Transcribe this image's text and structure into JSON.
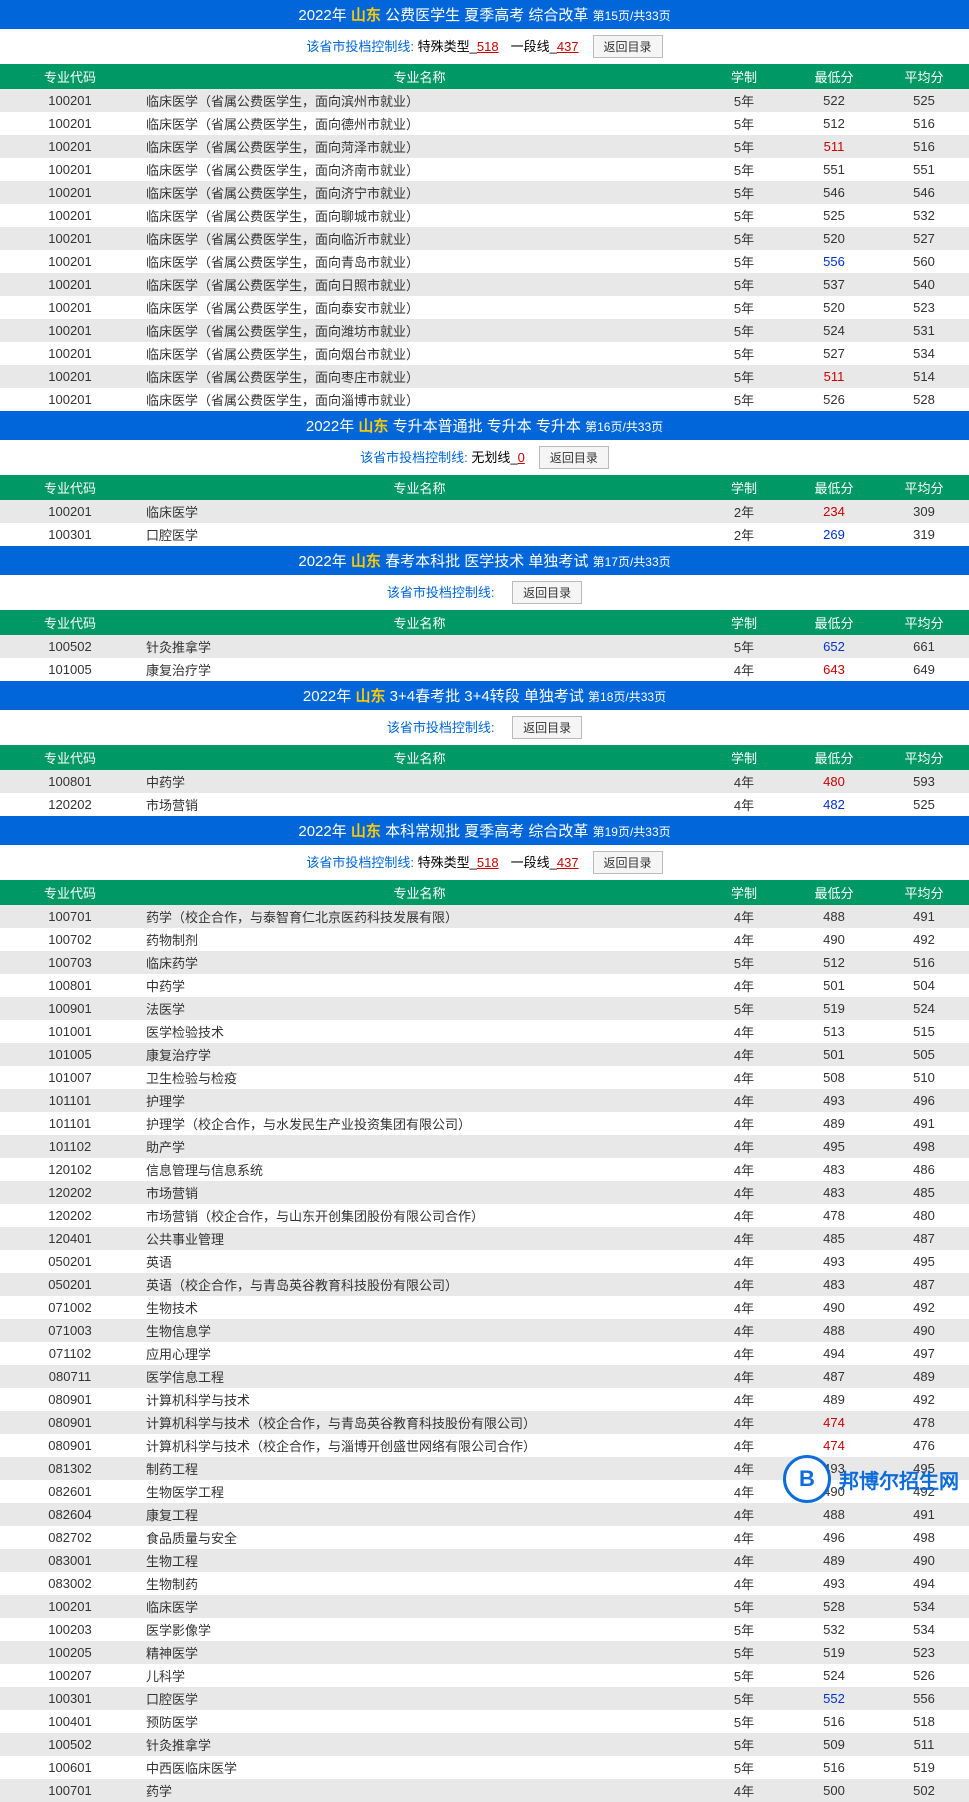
{
  "colors": {
    "title_bg": "#0066d9",
    "title_fg": "#ffffff",
    "province_fg": "#ffcc00",
    "header_bg": "#009966",
    "header_fg": "#ffffff",
    "row_even_bg": "#e8e8e8",
    "row_odd_bg": "#ffffff",
    "text": "#333333",
    "highlight_red": "#cc0000",
    "highlight_blue": "#0033cc",
    "link_blue": "#0066d9"
  },
  "common": {
    "year_prefix": "2022年",
    "province": "山东",
    "cutoff_label": "该省市投档控制线:",
    "special_label": "特殊类型",
    "tier_label": "一段线",
    "noline_label": "无划线",
    "return_btn": "返回目录",
    "col_code": "专业代码",
    "col_name": "专业名称",
    "col_dur": "学制",
    "col_min": "最低分",
    "col_avg": "平均分"
  },
  "watermark": {
    "initial": "B",
    "text": "邦博尔招生网"
  },
  "sections": [
    {
      "title_rest": "公费医学生 夏季高考 综合改革",
      "page_info": "第15页/共33页",
      "cutoff": {
        "type": "two",
        "special": "518",
        "tier": "437"
      },
      "rows": [
        {
          "code": "100201",
          "name": "临床医学（省属公费医学生，面向滨州市就业）",
          "dur": "5年",
          "min": "522",
          "avg": "525"
        },
        {
          "code": "100201",
          "name": "临床医学（省属公费医学生，面向德州市就业）",
          "dur": "5年",
          "min": "512",
          "avg": "516"
        },
        {
          "code": "100201",
          "name": "临床医学（省属公费医学生，面向菏泽市就业）",
          "dur": "5年",
          "min": "511",
          "min_c": "red",
          "avg": "516"
        },
        {
          "code": "100201",
          "name": "临床医学（省属公费医学生，面向济南市就业）",
          "dur": "5年",
          "min": "551",
          "avg": "551"
        },
        {
          "code": "100201",
          "name": "临床医学（省属公费医学生，面向济宁市就业）",
          "dur": "5年",
          "min": "546",
          "avg": "546"
        },
        {
          "code": "100201",
          "name": "临床医学（省属公费医学生，面向聊城市就业）",
          "dur": "5年",
          "min": "525",
          "avg": "532"
        },
        {
          "code": "100201",
          "name": "临床医学（省属公费医学生，面向临沂市就业）",
          "dur": "5年",
          "min": "520",
          "avg": "527"
        },
        {
          "code": "100201",
          "name": "临床医学（省属公费医学生，面向青岛市就业）",
          "dur": "5年",
          "min": "556",
          "min_c": "blue",
          "avg": "560"
        },
        {
          "code": "100201",
          "name": "临床医学（省属公费医学生，面向日照市就业）",
          "dur": "5年",
          "min": "537",
          "avg": "540"
        },
        {
          "code": "100201",
          "name": "临床医学（省属公费医学生，面向泰安市就业）",
          "dur": "5年",
          "min": "520",
          "avg": "523"
        },
        {
          "code": "100201",
          "name": "临床医学（省属公费医学生，面向潍坊市就业）",
          "dur": "5年",
          "min": "524",
          "avg": "531"
        },
        {
          "code": "100201",
          "name": "临床医学（省属公费医学生，面向烟台市就业）",
          "dur": "5年",
          "min": "527",
          "avg": "534"
        },
        {
          "code": "100201",
          "name": "临床医学（省属公费医学生，面向枣庄市就业）",
          "dur": "5年",
          "min": "511",
          "min_c": "red",
          "avg": "514"
        },
        {
          "code": "100201",
          "name": "临床医学（省属公费医学生，面向淄博市就业）",
          "dur": "5年",
          "min": "526",
          "avg": "528"
        }
      ]
    },
    {
      "title_rest": "专升本普通批 专升本 专升本",
      "page_info": "第16页/共33页",
      "cutoff": {
        "type": "none",
        "val": "0"
      },
      "rows": [
        {
          "code": "100201",
          "name": "临床医学",
          "dur": "2年",
          "min": "234",
          "min_c": "red",
          "avg": "309"
        },
        {
          "code": "100301",
          "name": "口腔医学",
          "dur": "2年",
          "min": "269",
          "min_c": "blue",
          "avg": "319"
        }
      ]
    },
    {
      "title_rest": "春考本科批 医学技术 单独考试",
      "page_info": "第17页/共33页",
      "cutoff": {
        "type": "empty"
      },
      "rows": [
        {
          "code": "100502",
          "name": "针灸推拿学",
          "dur": "5年",
          "min": "652",
          "min_c": "blue",
          "avg": "661"
        },
        {
          "code": "101005",
          "name": "康复治疗学",
          "dur": "4年",
          "min": "643",
          "min_c": "red",
          "avg": "649"
        }
      ]
    },
    {
      "title_rest": "3+4春考批 3+4转段 单独考试",
      "page_info": "第18页/共33页",
      "cutoff": {
        "type": "empty"
      },
      "rows": [
        {
          "code": "100801",
          "name": "中药学",
          "dur": "4年",
          "min": "480",
          "min_c": "red",
          "avg": "593"
        },
        {
          "code": "120202",
          "name": "市场营销",
          "dur": "4年",
          "min": "482",
          "min_c": "blue",
          "avg": "525"
        }
      ]
    },
    {
      "title_rest": "本科常规批 夏季高考 综合改革",
      "page_info": "第19页/共33页",
      "cutoff": {
        "type": "two",
        "special": "518",
        "tier": "437"
      },
      "rows": [
        {
          "code": "100701",
          "name": "药学（校企合作，与泰智育仁北京医药科技发展有限）",
          "dur": "4年",
          "min": "488",
          "avg": "491"
        },
        {
          "code": "100702",
          "name": "药物制剂",
          "dur": "4年",
          "min": "490",
          "avg": "492"
        },
        {
          "code": "100703",
          "name": "临床药学",
          "dur": "5年",
          "min": "512",
          "avg": "516"
        },
        {
          "code": "100801",
          "name": "中药学",
          "dur": "4年",
          "min": "501",
          "avg": "504"
        },
        {
          "code": "100901",
          "name": "法医学",
          "dur": "5年",
          "min": "519",
          "avg": "524"
        },
        {
          "code": "101001",
          "name": "医学检验技术",
          "dur": "4年",
          "min": "513",
          "avg": "515"
        },
        {
          "code": "101005",
          "name": "康复治疗学",
          "dur": "4年",
          "min": "501",
          "avg": "505"
        },
        {
          "code": "101007",
          "name": "卫生检验与检疫",
          "dur": "4年",
          "min": "508",
          "avg": "510"
        },
        {
          "code": "101101",
          "name": "护理学",
          "dur": "4年",
          "min": "493",
          "avg": "496"
        },
        {
          "code": "101101",
          "name": "护理学（校企合作，与水发民生产业投资集团有限公司）",
          "dur": "4年",
          "min": "489",
          "avg": "491"
        },
        {
          "code": "101102",
          "name": "助产学",
          "dur": "4年",
          "min": "495",
          "avg": "498"
        },
        {
          "code": "120102",
          "name": "信息管理与信息系统",
          "dur": "4年",
          "min": "483",
          "avg": "486"
        },
        {
          "code": "120202",
          "name": "市场营销",
          "dur": "4年",
          "min": "483",
          "avg": "485"
        },
        {
          "code": "120202",
          "name": "市场营销（校企合作，与山东开创集团股份有限公司合作）",
          "dur": "4年",
          "min": "478",
          "avg": "480"
        },
        {
          "code": "120401",
          "name": "公共事业管理",
          "dur": "4年",
          "min": "485",
          "avg": "487"
        },
        {
          "code": "050201",
          "name": "英语",
          "dur": "4年",
          "min": "493",
          "avg": "495"
        },
        {
          "code": "050201",
          "name": "英语（校企合作，与青岛英谷教育科技股份有限公司）",
          "dur": "4年",
          "min": "483",
          "avg": "487"
        },
        {
          "code": "071002",
          "name": "生物技术",
          "dur": "4年",
          "min": "490",
          "avg": "492"
        },
        {
          "code": "071003",
          "name": "生物信息学",
          "dur": "4年",
          "min": "488",
          "avg": "490"
        },
        {
          "code": "071102",
          "name": "应用心理学",
          "dur": "4年",
          "min": "494",
          "avg": "497"
        },
        {
          "code": "080711",
          "name": "医学信息工程",
          "dur": "4年",
          "min": "487",
          "avg": "489"
        },
        {
          "code": "080901",
          "name": "计算机科学与技术",
          "dur": "4年",
          "min": "489",
          "avg": "492"
        },
        {
          "code": "080901",
          "name": "计算机科学与技术（校企合作，与青岛英谷教育科技股份有限公司）",
          "dur": "4年",
          "min": "474",
          "min_c": "red",
          "avg": "478"
        },
        {
          "code": "080901",
          "name": "计算机科学与技术（校企合作，与淄博开创盛世网络有限公司合作）",
          "dur": "4年",
          "min": "474",
          "min_c": "red",
          "avg": "476"
        },
        {
          "code": "081302",
          "name": "制药工程",
          "dur": "4年",
          "min": "493",
          "avg": "495"
        },
        {
          "code": "082601",
          "name": "生物医学工程",
          "dur": "4年",
          "min": "490",
          "avg": "492"
        },
        {
          "code": "082604",
          "name": "康复工程",
          "dur": "4年",
          "min": "488",
          "avg": "491"
        },
        {
          "code": "082702",
          "name": "食品质量与安全",
          "dur": "4年",
          "min": "496",
          "avg": "498"
        },
        {
          "code": "083001",
          "name": "生物工程",
          "dur": "4年",
          "min": "489",
          "avg": "490"
        },
        {
          "code": "083002",
          "name": "生物制药",
          "dur": "4年",
          "min": "493",
          "avg": "494"
        },
        {
          "code": "100201",
          "name": "临床医学",
          "dur": "5年",
          "min": "528",
          "avg": "534"
        },
        {
          "code": "100203",
          "name": "医学影像学",
          "dur": "5年",
          "min": "532",
          "avg": "534"
        },
        {
          "code": "100205",
          "name": "精神医学",
          "dur": "5年",
          "min": "519",
          "avg": "523"
        },
        {
          "code": "100207",
          "name": "儿科学",
          "dur": "5年",
          "min": "524",
          "avg": "526"
        },
        {
          "code": "100301",
          "name": "口腔医学",
          "dur": "5年",
          "min": "552",
          "min_c": "blue",
          "avg": "556"
        },
        {
          "code": "100401",
          "name": "预防医学",
          "dur": "5年",
          "min": "516",
          "avg": "518"
        },
        {
          "code": "100502",
          "name": "针灸推拿学",
          "dur": "5年",
          "min": "509",
          "avg": "511"
        },
        {
          "code": "100601",
          "name": "中西医临床医学",
          "dur": "5年",
          "min": "516",
          "avg": "519"
        },
        {
          "code": "100701",
          "name": "药学",
          "dur": "4年",
          "min": "500",
          "avg": "502"
        }
      ]
    }
  ]
}
